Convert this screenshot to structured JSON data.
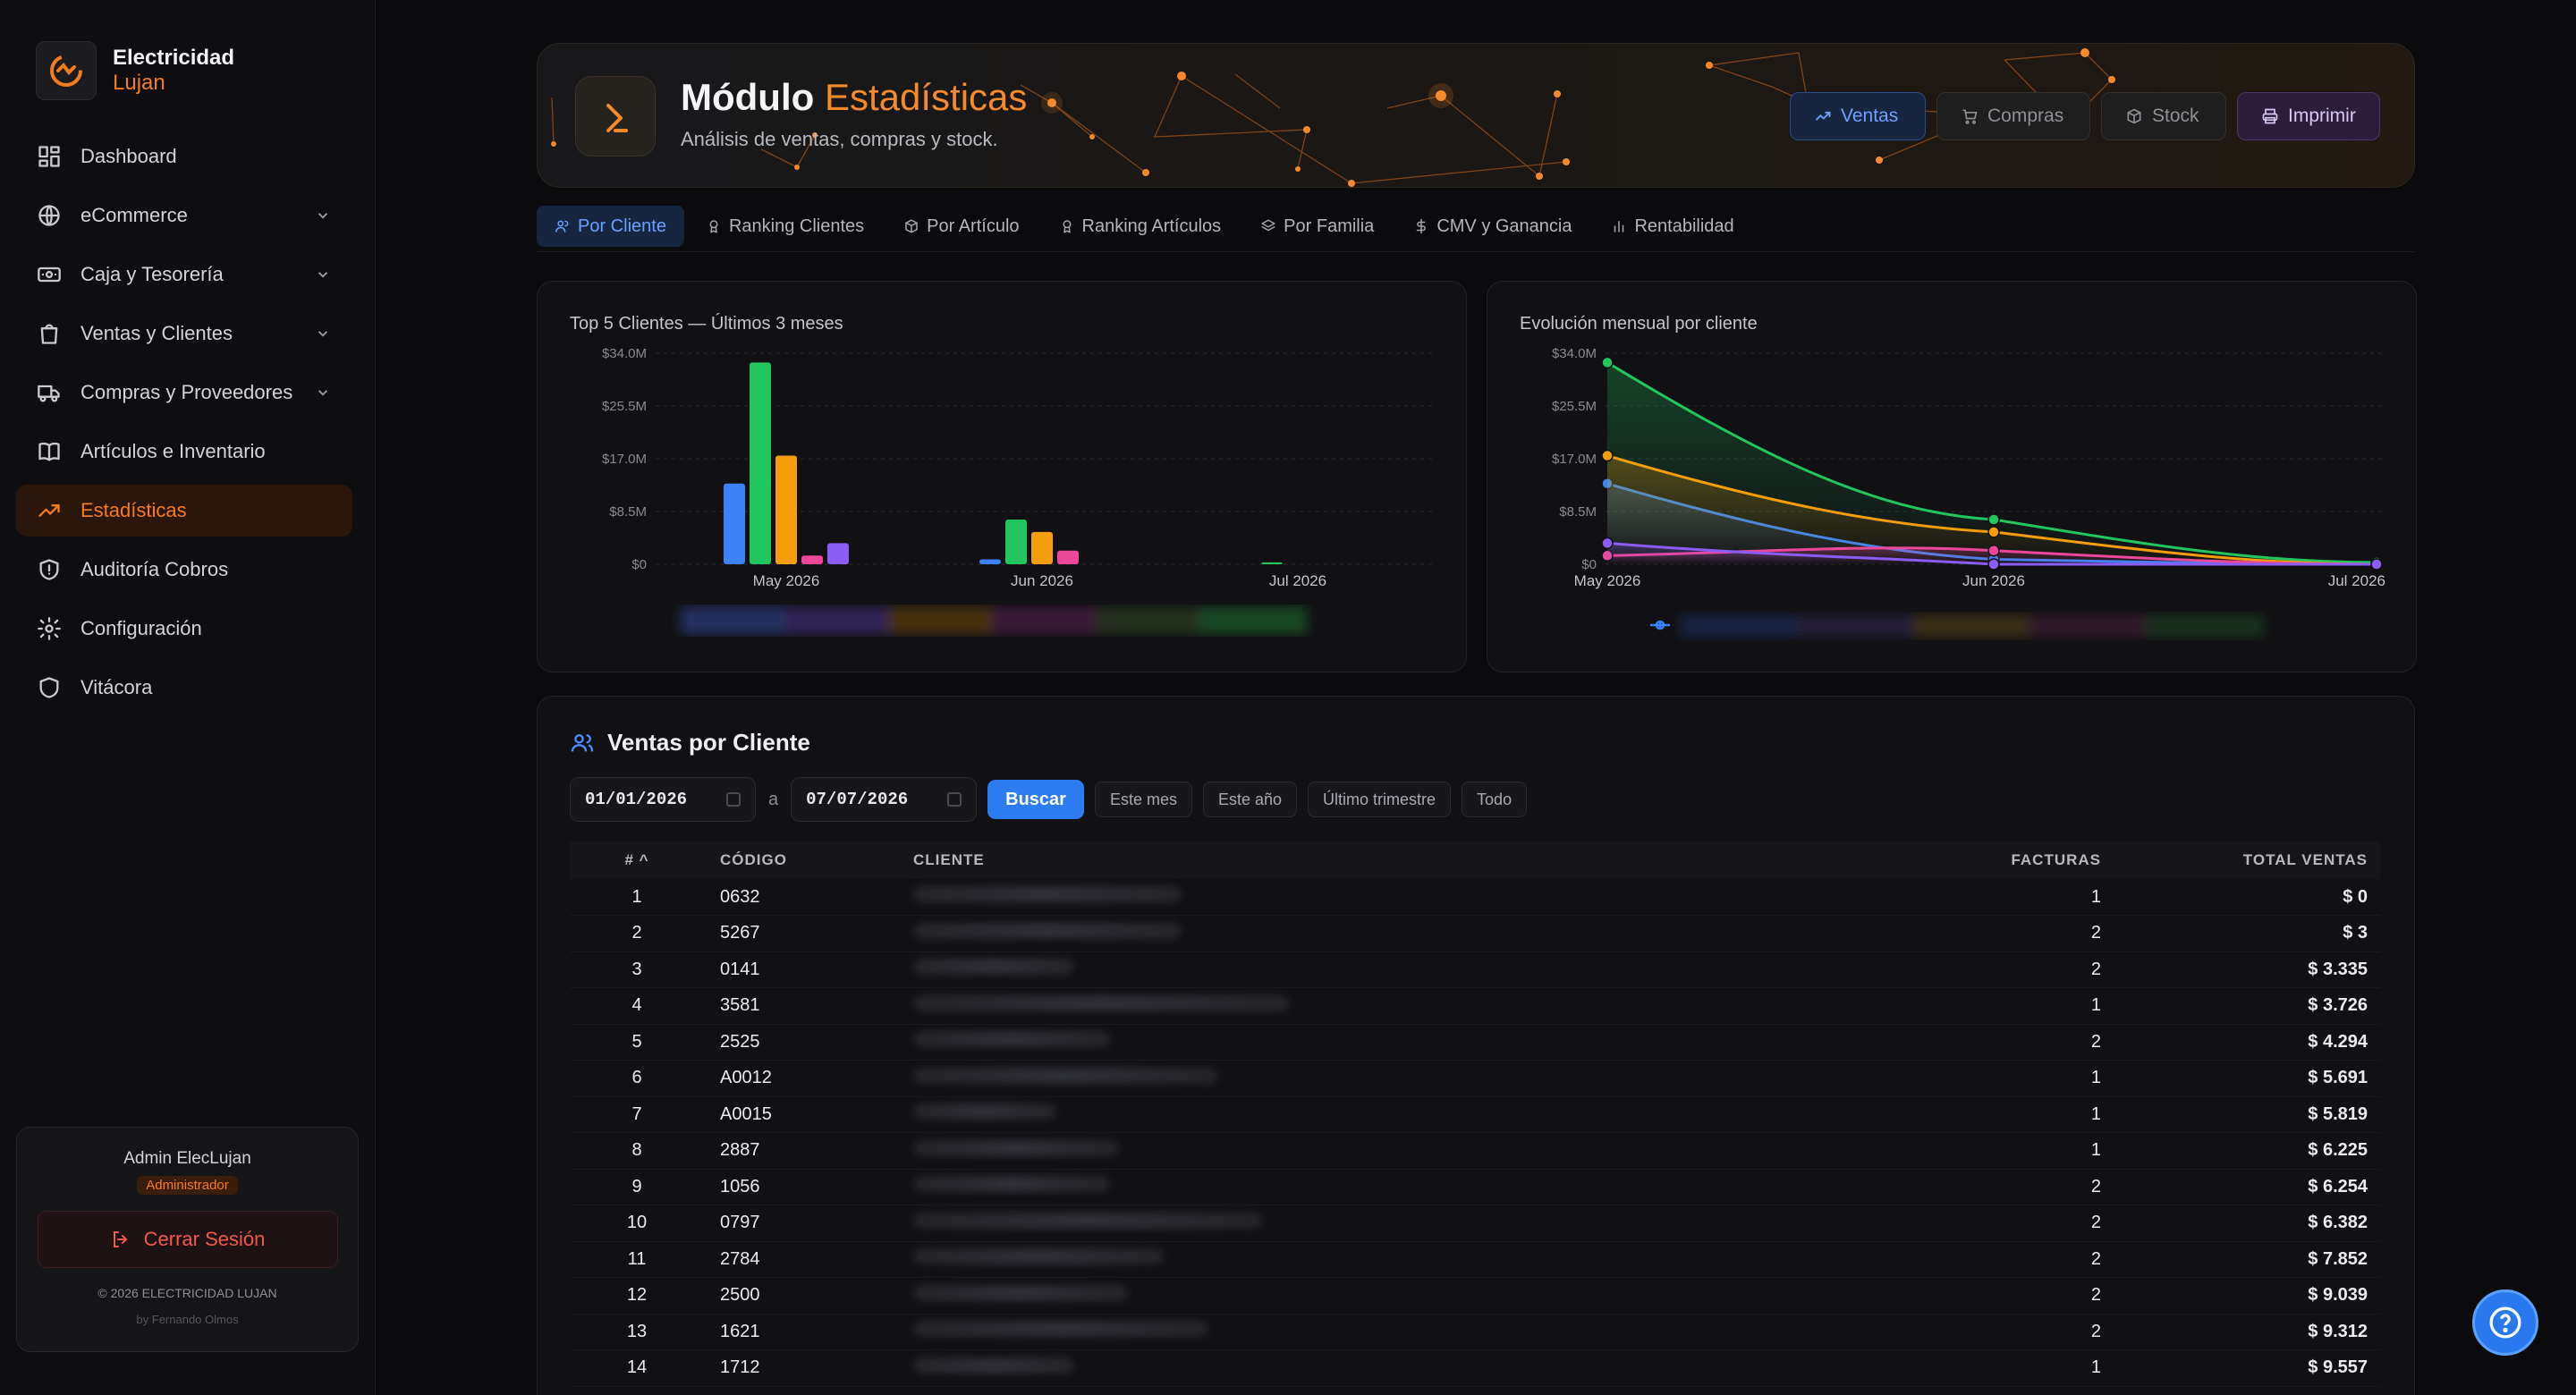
{
  "brand": {
    "name": "Electricidad",
    "sub": "Lujan"
  },
  "nav": [
    {
      "label": "Dashboard",
      "icon": "dashboard-icon",
      "expandable": false
    },
    {
      "label": "eCommerce",
      "icon": "globe-icon",
      "expandable": true
    },
    {
      "label": "Caja y Tesorería",
      "icon": "cash-icon",
      "expandable": true
    },
    {
      "label": "Ventas y Clientes",
      "icon": "shopping-bag-icon",
      "expandable": true
    },
    {
      "label": "Compras y Proveedores",
      "icon": "truck-icon",
      "expandable": true
    },
    {
      "label": "Artículos e Inventario",
      "icon": "book-icon",
      "expandable": false
    },
    {
      "label": "Estadísticas",
      "icon": "trending-up-icon",
      "expandable": false,
      "active": true
    },
    {
      "label": "Auditoría Cobros",
      "icon": "shield-alert-icon",
      "expandable": false
    },
    {
      "label": "Configuración",
      "icon": "gear-icon",
      "expandable": false
    },
    {
      "label": "Vitácora",
      "icon": "shield-icon",
      "expandable": false
    }
  ],
  "user": {
    "name": "Admin ElecLujan",
    "role": "Administrador",
    "logout_label": "Cerrar Sesión",
    "copyright": "© 2026 ELECTRICIDAD LUJAN",
    "byline": "by Fernando Olmos"
  },
  "hero": {
    "title_main": "Módulo",
    "title_accent": "Estadísticas",
    "subtitle": "Análisis de ventas, compras y stock.",
    "buttons": {
      "ventas": "Ventas",
      "compras": "Compras",
      "stock": "Stock",
      "imprimir": "Imprimir"
    }
  },
  "tabs": [
    {
      "label": "Por Cliente",
      "icon": "users-icon",
      "active": true
    },
    {
      "label": "Ranking Clientes",
      "icon": "award-icon"
    },
    {
      "label": "Por Artículo",
      "icon": "box-icon"
    },
    {
      "label": "Ranking Artículos",
      "icon": "award-icon"
    },
    {
      "label": "Por Familia",
      "icon": "layers-icon"
    },
    {
      "label": "CMV y Ganancia",
      "icon": "dollar-icon"
    },
    {
      "label": "Rentabilidad",
      "icon": "bar-chart-icon"
    }
  ],
  "colors": {
    "accent": "#f47c20",
    "series": [
      "#3b82f6",
      "#22c55e",
      "#f59e0b",
      "#ec4899",
      "#8b5cf6"
    ]
  },
  "chart_data": [
    {
      "type": "bar",
      "title": "Top 5 Clientes — Últimos 3 meses",
      "categories": [
        "May 2026",
        "Jun 2026",
        "Jul 2026"
      ],
      "yticks": [
        "$34.0M",
        "$25.5M",
        "$17.0M",
        "$8.5M",
        "$0"
      ],
      "ylim": [
        0,
        34
      ],
      "series": [
        {
          "values": [
            13.0,
            0.8,
            0.0
          ]
        },
        {
          "values": [
            32.5,
            7.2,
            0.3
          ]
        },
        {
          "values": [
            17.5,
            5.2,
            0.0
          ]
        },
        {
          "values": [
            1.4,
            2.2,
            0.0
          ]
        },
        {
          "values": [
            3.4,
            0.0,
            0.0
          ]
        }
      ]
    },
    {
      "type": "area",
      "title": "Evolución mensual por cliente",
      "categories": [
        "May 2026",
        "Jun 2026",
        "Jul 2026"
      ],
      "yticks": [
        "$34.0M",
        "$25.5M",
        "$17.0M",
        "$8.5M",
        "$0"
      ],
      "ylim": [
        0,
        34
      ],
      "series": [
        {
          "values": [
            13.0,
            0.8,
            0.0
          ]
        },
        {
          "values": [
            32.5,
            7.2,
            0.3
          ]
        },
        {
          "values": [
            17.5,
            5.2,
            0.0
          ]
        },
        {
          "values": [
            1.4,
            2.2,
            0.0
          ]
        },
        {
          "values": [
            3.4,
            0.0,
            0.0
          ]
        }
      ]
    }
  ],
  "ventas": {
    "title": "Ventas por Cliente",
    "date_from": "01/01/2026",
    "date_sep": "a",
    "date_to": "07/07/2026",
    "buscar": "Buscar",
    "filters": [
      "Este mes",
      "Este año",
      "Último trimestre",
      "Todo"
    ],
    "columns": [
      "# ^",
      "CÓDIGO",
      "CLIENTE",
      "FACTURAS",
      "TOTAL VENTAS"
    ],
    "rows": [
      [
        "1",
        "0632",
        "1",
        "$ 0"
      ],
      [
        "2",
        "5267",
        "2",
        "$ 3"
      ],
      [
        "3",
        "0141",
        "2",
        "$ 3.335"
      ],
      [
        "4",
        "3581",
        "1",
        "$ 3.726"
      ],
      [
        "5",
        "2525",
        "2",
        "$ 4.294"
      ],
      [
        "6",
        "A0012",
        "1",
        "$ 5.691"
      ],
      [
        "7",
        "A0015",
        "1",
        "$ 5.819"
      ],
      [
        "8",
        "2887",
        "1",
        "$ 6.225"
      ],
      [
        "9",
        "1056",
        "2",
        "$ 6.254"
      ],
      [
        "10",
        "0797",
        "2",
        "$ 6.382"
      ],
      [
        "11",
        "2784",
        "2",
        "$ 7.852"
      ],
      [
        "12",
        "2500",
        "2",
        "$ 9.039"
      ],
      [
        "13",
        "1621",
        "2",
        "$ 9.312"
      ],
      [
        "14",
        "1712",
        "1",
        "$ 9.557"
      ]
    ]
  }
}
